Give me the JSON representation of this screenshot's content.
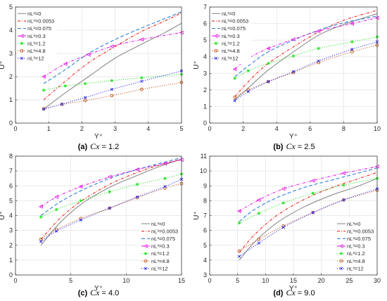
{
  "figure": {
    "series_style": [
      {
        "color": "#8c8c8c",
        "dash": "",
        "marker": "none"
      },
      {
        "color": "#e8251e",
        "dash": "4,2,1,2",
        "marker": "none"
      },
      {
        "color": "#2d7fd8",
        "dash": "5,3",
        "marker": "none"
      },
      {
        "color": "#e323e3",
        "dash": "4,2,1,2",
        "marker": "triangle"
      },
      {
        "color": "#28e228",
        "dash": "1,2",
        "marker": "star"
      },
      {
        "color": "#c0541a",
        "dash": "1,2",
        "marker": "circle"
      },
      {
        "color": "#2020e8",
        "dash": "1,2",
        "marker": "x"
      }
    ]
  },
  "chart_data": [
    {
      "type": "line",
      "panel_letter": "(a)",
      "caption_var": "Cx",
      "caption_value": "= 1.2",
      "xlabel": "Y⁺",
      "ylabel": "U⁺",
      "xlim": [
        0,
        5
      ],
      "ylim": [
        0,
        5
      ],
      "xticks": [
        0,
        1,
        2,
        3,
        4,
        5
      ],
      "yticks": [
        0,
        1,
        2,
        3,
        4,
        5
      ],
      "grid": true,
      "legend_position": "top-left",
      "series": [
        {
          "name": "nL³=0",
          "x": [
            0.85,
            1.5,
            2.2,
            3.0,
            3.8,
            4.5,
            5.0
          ],
          "y": [
            0.6,
            1.3,
            2.0,
            2.8,
            3.4,
            3.9,
            4.3
          ]
        },
        {
          "name": "nL³=0.0053",
          "x": [
            0.85,
            1.5,
            2.2,
            3.0,
            3.8,
            4.5,
            5.0
          ],
          "y": [
            1.0,
            1.8,
            2.6,
            3.3,
            3.95,
            4.4,
            4.75
          ]
        },
        {
          "name": "nL³=0.075",
          "x": [
            0.85,
            1.5,
            2.2,
            3.0,
            3.8,
            4.5,
            5.0
          ],
          "y": [
            1.7,
            2.3,
            3.0,
            3.6,
            4.1,
            4.5,
            4.8
          ]
        },
        {
          "name": "nL³=0.3",
          "x": [
            0.85,
            1.5,
            2.2,
            2.9,
            3.8,
            5.0
          ],
          "y": [
            2.0,
            2.55,
            2.95,
            3.3,
            3.6,
            3.9
          ]
        },
        {
          "name": "nL³=1.2",
          "x": [
            0.85,
            1.5,
            2.1,
            2.9,
            3.8,
            5.0
          ],
          "y": [
            1.42,
            1.6,
            1.7,
            1.83,
            1.95,
            2.1
          ]
        },
        {
          "name": "nL³=4.8",
          "x": [
            0.85,
            1.4,
            2.1,
            2.9,
            3.8,
            5.0
          ],
          "y": [
            0.62,
            0.8,
            0.97,
            1.18,
            1.45,
            1.75
          ]
        },
        {
          "name": "nL³=12",
          "x": [
            0.85,
            1.4,
            2.1,
            2.9,
            3.8,
            5.0
          ],
          "y": [
            0.6,
            0.82,
            1.1,
            1.45,
            1.8,
            2.25
          ]
        }
      ]
    },
    {
      "type": "line",
      "panel_letter": "(b)",
      "caption_var": "Cx",
      "caption_value": "= 2.5",
      "xlabel": "Y⁺",
      "ylabel": "U⁺",
      "xlim": [
        0,
        10
      ],
      "ylim": [
        0,
        7
      ],
      "xticks": [
        0,
        2,
        4,
        6,
        8,
        10
      ],
      "yticks": [
        0,
        1,
        2,
        3,
        4,
        5,
        6,
        7
      ],
      "grid": true,
      "legend_position": "top-left",
      "series": [
        {
          "name": "nL³=0",
          "x": [
            1.5,
            2.5,
            3.5,
            5.0,
            6.5,
            8.0,
            10.0
          ],
          "y": [
            1.4,
            2.3,
            3.2,
            4.3,
            5.3,
            5.95,
            6.6
          ]
        },
        {
          "name": "nL³=0.0053",
          "x": [
            1.5,
            2.5,
            3.5,
            5.0,
            6.5,
            8.0,
            10.0
          ],
          "y": [
            1.6,
            2.7,
            3.6,
            4.6,
            5.5,
            6.2,
            6.8
          ]
        },
        {
          "name": "nL³=0.075",
          "x": [
            1.5,
            2.5,
            3.5,
            5.0,
            6.5,
            8.0,
            10.0
          ],
          "y": [
            2.8,
            3.6,
            4.3,
            5.0,
            5.6,
            6.05,
            6.45
          ]
        },
        {
          "name": "nL³=0.3",
          "x": [
            1.5,
            2.3,
            3.5,
            5.0,
            6.5,
            8.5,
            10.0
          ],
          "y": [
            3.25,
            3.9,
            4.5,
            5.05,
            5.55,
            6.0,
            6.35
          ]
        },
        {
          "name": "nL³=1.2",
          "x": [
            1.5,
            2.3,
            3.5,
            5.0,
            6.5,
            8.5,
            10.0
          ],
          "y": [
            2.7,
            3.15,
            3.6,
            4.05,
            4.5,
            4.9,
            5.2
          ]
        },
        {
          "name": "nL³=4.8",
          "x": [
            1.5,
            2.3,
            3.5,
            5.0,
            6.5,
            8.5,
            10.0
          ],
          "y": [
            1.55,
            2.0,
            2.5,
            3.05,
            3.65,
            4.3,
            4.7
          ]
        },
        {
          "name": "nL³=12",
          "x": [
            1.5,
            2.3,
            3.5,
            5.0,
            6.5,
            8.5,
            10.0
          ],
          "y": [
            1.35,
            1.9,
            2.5,
            3.1,
            3.75,
            4.45,
            4.9
          ]
        }
      ]
    },
    {
      "type": "line",
      "panel_letter": "(c)",
      "caption_var": "Cx",
      "caption_value": "= 4.0",
      "xlabel": "Y⁺",
      "ylabel": "U⁺",
      "xlim": [
        0,
        15
      ],
      "ylim": [
        0,
        8
      ],
      "xticks": [
        0,
        5,
        10,
        15
      ],
      "yticks": [
        0,
        1,
        2,
        3,
        4,
        5,
        6,
        7,
        8
      ],
      "grid": true,
      "legend_position": "bottom-right",
      "series": [
        {
          "name": "nL³=0",
          "x": [
            2.3,
            4.0,
            6.0,
            8.5,
            11.0,
            13.0,
            15.0
          ],
          "y": [
            2.0,
            3.5,
            4.8,
            5.9,
            6.7,
            7.3,
            7.8
          ]
        },
        {
          "name": "nL³=0.0053",
          "x": [
            2.3,
            4.0,
            6.0,
            8.5,
            11.0,
            13.0,
            15.0
          ],
          "y": [
            2.4,
            3.8,
            5.0,
            6.1,
            6.9,
            7.4,
            7.8
          ]
        },
        {
          "name": "nL³=0.075",
          "x": [
            2.3,
            4.0,
            6.0,
            8.5,
            11.0,
            13.0,
            15.0
          ],
          "y": [
            4.0,
            4.9,
            5.7,
            6.5,
            7.1,
            7.5,
            7.9
          ]
        },
        {
          "name": "nL³=0.3",
          "x": [
            2.3,
            3.7,
            5.9,
            8.5,
            11.0,
            13.5,
            15.0
          ],
          "y": [
            4.6,
            5.25,
            5.95,
            6.6,
            7.1,
            7.5,
            7.75
          ]
        },
        {
          "name": "nL³=1.2",
          "x": [
            2.3,
            3.7,
            5.9,
            8.5,
            11.0,
            13.5,
            15.0
          ],
          "y": [
            3.9,
            4.4,
            5.0,
            5.6,
            6.1,
            6.5,
            6.8
          ]
        },
        {
          "name": "nL³=4.8",
          "x": [
            2.3,
            3.7,
            5.9,
            8.5,
            11.0,
            13.5,
            15.0
          ],
          "y": [
            2.4,
            3.05,
            3.8,
            4.5,
            5.2,
            5.85,
            6.15
          ]
        },
        {
          "name": "nL³=12",
          "x": [
            2.3,
            3.7,
            5.9,
            8.5,
            11.0,
            13.5,
            15.0
          ],
          "y": [
            2.25,
            2.95,
            3.7,
            4.5,
            5.25,
            5.95,
            6.45
          ]
        }
      ]
    },
    {
      "type": "line",
      "panel_letter": "(d)",
      "caption_var": "Cx",
      "caption_value": "= 9.0",
      "xlabel": "Y⁺",
      "ylabel": "U⁺",
      "xlim": [
        0,
        30
      ],
      "ylim": [
        3,
        11
      ],
      "xticks": [
        0,
        5,
        10,
        15,
        20,
        25,
        30
      ],
      "yticks": [
        3,
        4,
        5,
        6,
        7,
        8,
        9,
        10,
        11
      ],
      "grid": true,
      "legend_position": "bottom-right",
      "series": [
        {
          "name": "nL³=0",
          "x": [
            5.3,
            8.0,
            12.0,
            17.0,
            22.0,
            26.0,
            30.0
          ],
          "y": [
            4.0,
            5.2,
            6.5,
            7.6,
            8.4,
            8.9,
            9.5
          ]
        },
        {
          "name": "nL³=0.0053",
          "x": [
            5.3,
            8.0,
            12.0,
            17.0,
            22.0,
            26.0,
            30.0
          ],
          "y": [
            4.5,
            5.7,
            7.0,
            8.1,
            8.9,
            9.4,
            9.9
          ]
        },
        {
          "name": "nL³=0.075",
          "x": [
            5.3,
            8.0,
            12.0,
            17.0,
            22.0,
            26.0,
            30.0
          ],
          "y": [
            6.6,
            7.4,
            8.2,
            8.9,
            9.4,
            9.8,
            10.2
          ]
        },
        {
          "name": "nL³=0.3",
          "x": [
            5.3,
            8.8,
            13.2,
            18.5,
            24.0,
            30.0
          ],
          "y": [
            7.3,
            8.05,
            8.8,
            9.35,
            9.85,
            10.3
          ]
        },
        {
          "name": "nL³=1.2",
          "x": [
            5.3,
            8.8,
            13.2,
            18.5,
            24.0,
            30.0
          ],
          "y": [
            6.5,
            7.15,
            7.85,
            8.5,
            9.05,
            9.5
          ]
        },
        {
          "name": "nL³=4.8",
          "x": [
            5.3,
            8.8,
            13.2,
            18.5,
            24.0,
            30.0
          ],
          "y": [
            4.6,
            5.4,
            6.3,
            7.2,
            8.05,
            8.7
          ]
        },
        {
          "name": "nL³=12",
          "x": [
            5.3,
            8.8,
            13.2,
            18.5,
            24.0,
            30.0
          ],
          "y": [
            4.25,
            5.15,
            6.2,
            7.2,
            8.05,
            8.8
          ]
        }
      ]
    }
  ]
}
